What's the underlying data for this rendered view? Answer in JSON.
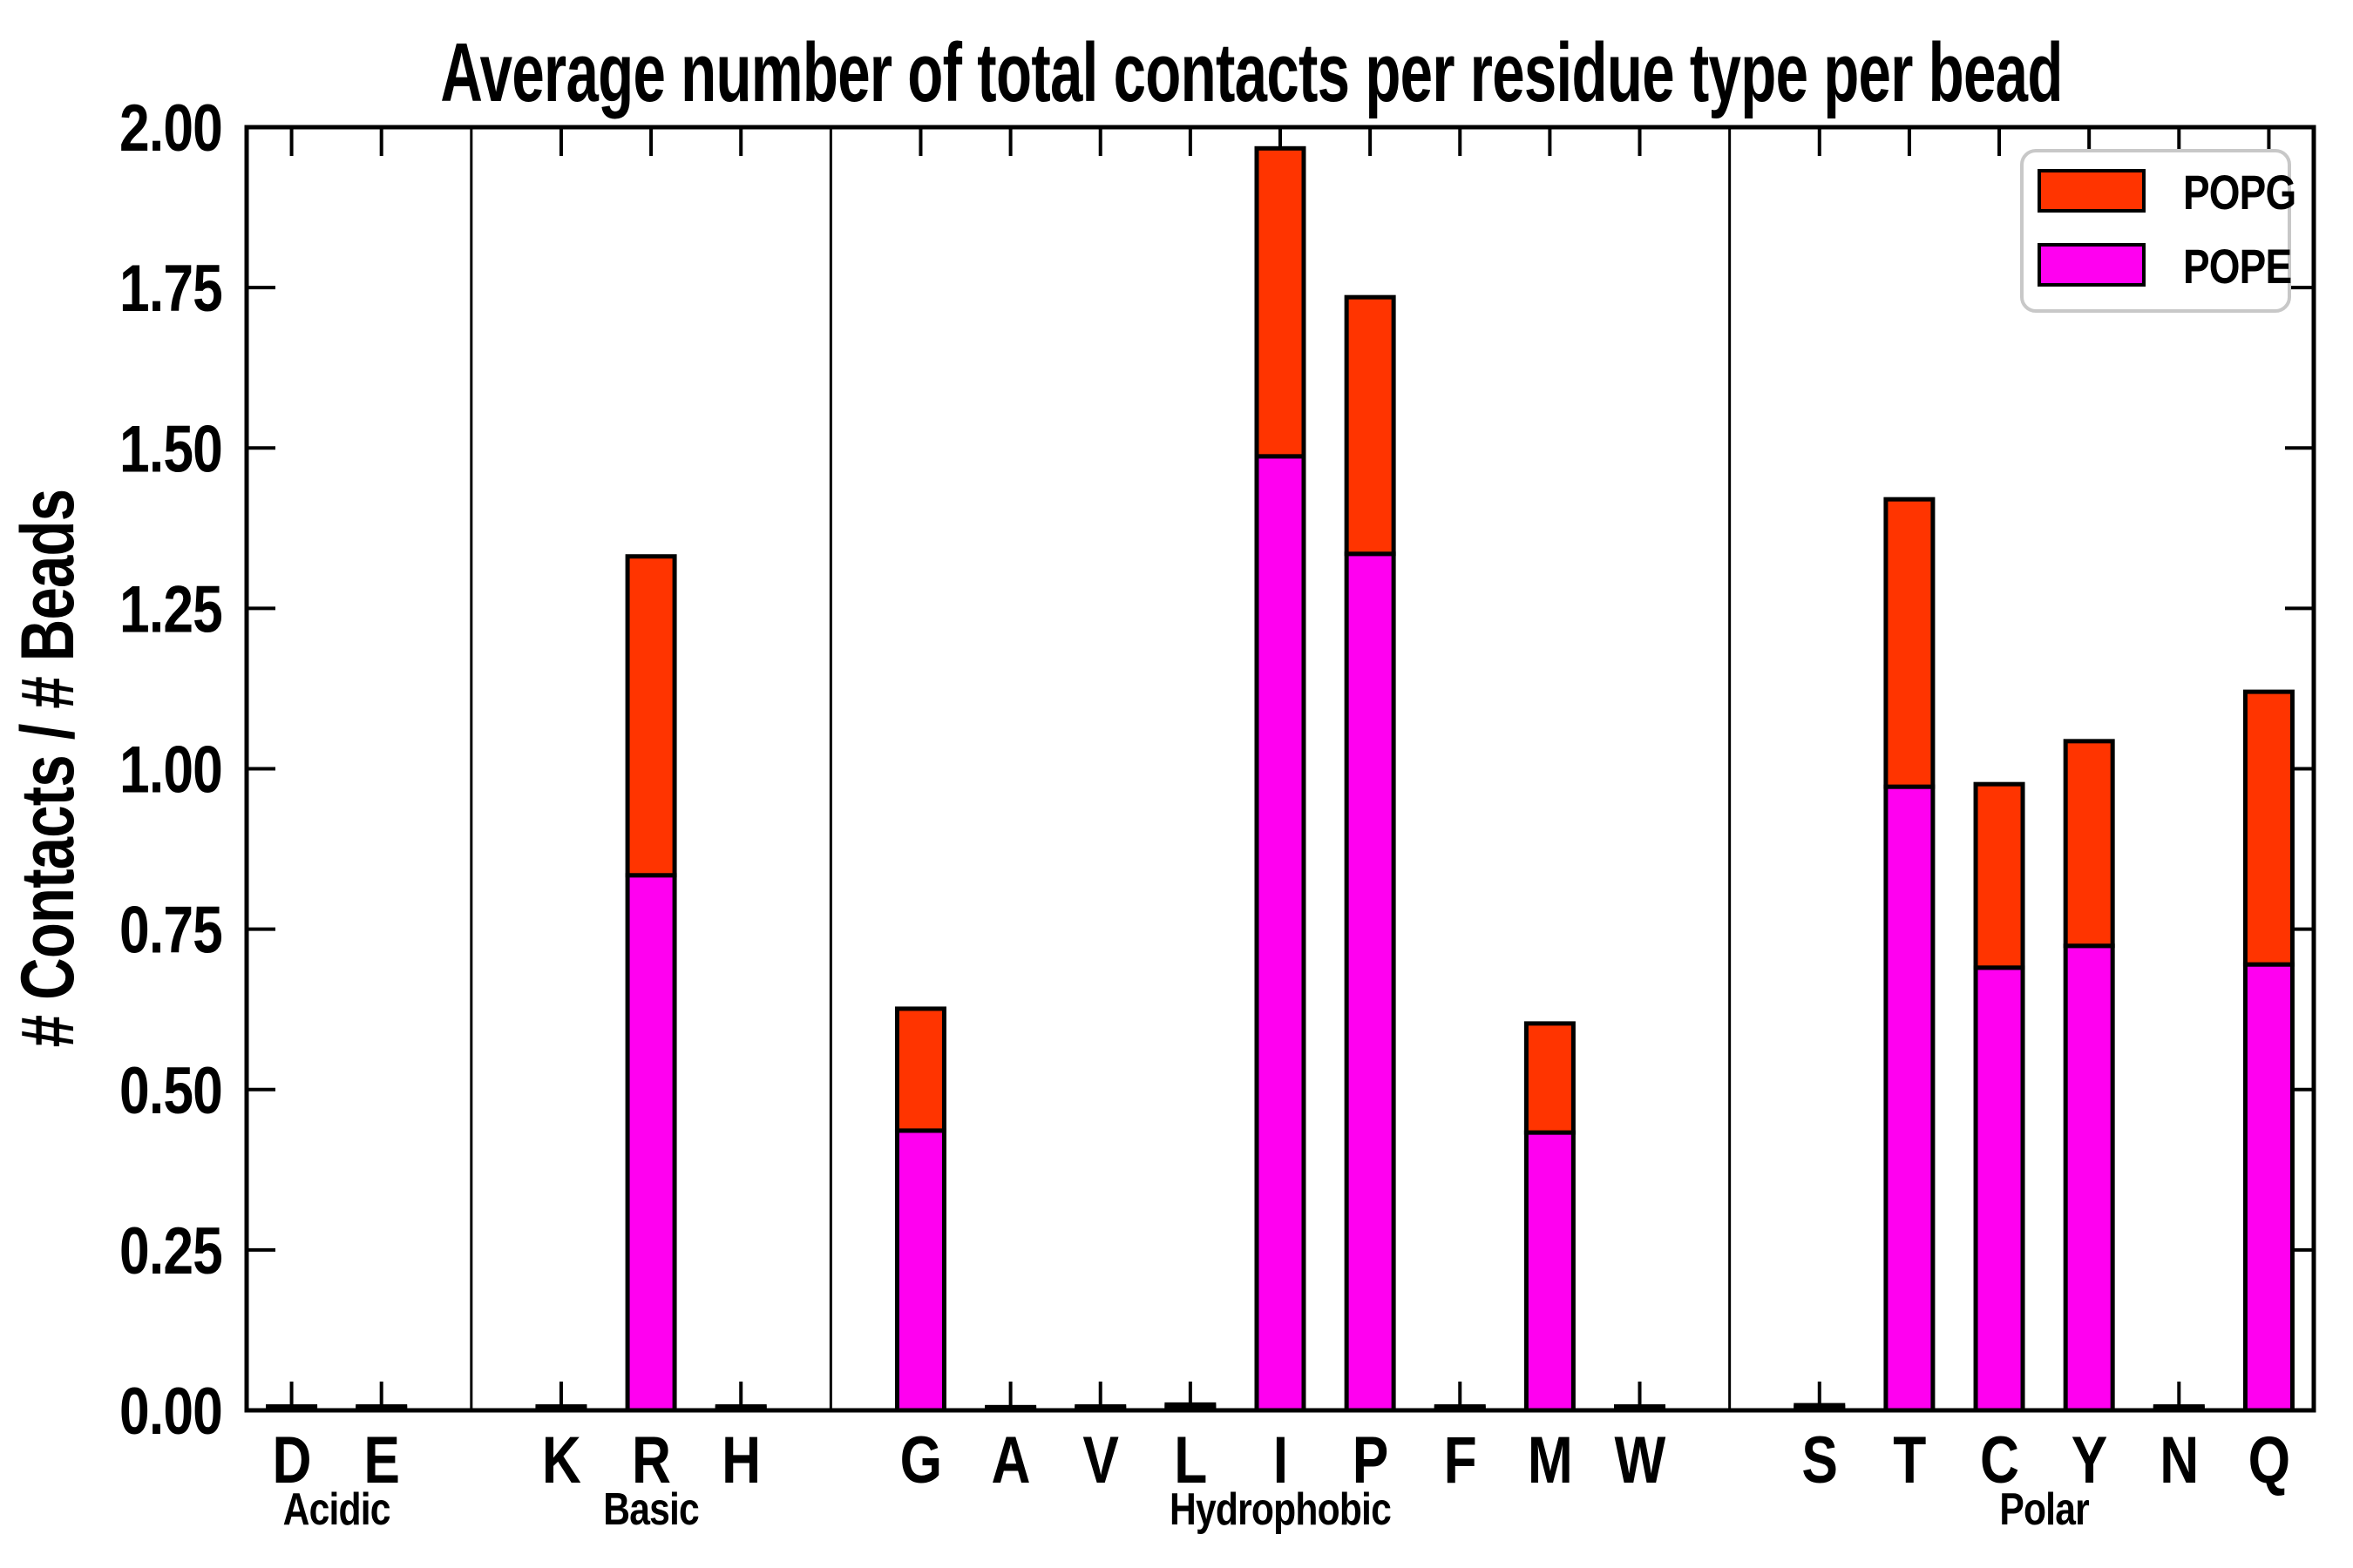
{
  "chart_data": {
    "type": "bar",
    "stacked": true,
    "title": "Average number of total contacts per residue type per bead",
    "xlabel": "",
    "ylabel": "# Contacts / # Beads",
    "ylim": [
      0,
      2
    ],
    "ytick_step": 0.25,
    "ytick_labels": [
      "0.00",
      "0.25",
      "0.50",
      "0.75",
      "1.00",
      "1.25",
      "1.50",
      "1.75",
      "2.00"
    ],
    "grid": false,
    "legend_position": "upper right",
    "categories": [
      "D",
      "E",
      "K",
      "R",
      "H",
      "G",
      "A",
      "V",
      "L",
      "I",
      "P",
      "F",
      "M",
      "W",
      "S",
      "T",
      "C",
      "Y",
      "N",
      "Q"
    ],
    "groups": [
      {
        "label": "Acidic",
        "members": [
          "D",
          "E"
        ]
      },
      {
        "label": "Basic",
        "members": [
          "K",
          "R",
          "H"
        ]
      },
      {
        "label": "Hydrophobic",
        "members": [
          "G",
          "A",
          "V",
          "L",
          "I",
          "P",
          "F",
          "M",
          "W"
        ]
      },
      {
        "label": "Polar",
        "members": [
          "S",
          "T",
          "C",
          "Y",
          "N",
          "Q"
        ]
      }
    ],
    "series": [
      {
        "name": "POPE",
        "color": "#FF00F0",
        "values": [
          0.004,
          0.004,
          0.004,
          0.834,
          0.004,
          0.436,
          0.003,
          0.004,
          0.006,
          1.487,
          1.335,
          0.004,
          0.433,
          0.004,
          0.005,
          0.972,
          0.69,
          0.724,
          0.004,
          0.695
        ]
      },
      {
        "name": "POPG",
        "color": "#FF3400",
        "values": [
          0.002,
          0.002,
          0.002,
          0.497,
          0.002,
          0.19,
          0.002,
          0.002,
          0.003,
          0.48,
          0.4,
          0.002,
          0.17,
          0.002,
          0.003,
          0.448,
          0.286,
          0.319,
          0.002,
          0.425
        ]
      }
    ]
  },
  "legend": [
    {
      "label": "POPG",
      "color": "#FF3400"
    },
    {
      "label": "POPE",
      "color": "#FF00F0"
    }
  ],
  "colors": {
    "bar_edge": "#000000",
    "axis": "#000000",
    "legend_border": "#c8c8c8",
    "background": "#ffffff"
  }
}
